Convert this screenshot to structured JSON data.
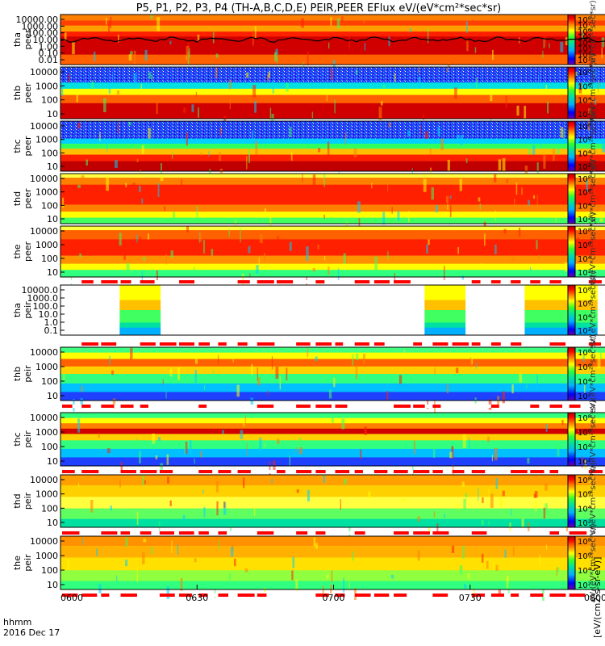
{
  "chart_data": {
    "type": "heatmap",
    "title": "P5, P1, P2, P3, P4 (TH-A,B,C,D,E) PEIR,PEER EFlux eV/(eV*cm²*sec*sr)",
    "x_ticks": [
      "0600",
      "0630",
      "0700",
      "0730",
      "0800"
    ],
    "x_range_minutes": [
      0,
      120
    ],
    "xlabel_line1": "hhmm",
    "xlabel_line2": "2016 Dec 17",
    "colorbar_label": "[eV/(cm2-s-sr-eV)]",
    "colorbar_ticks": [
      "10⁸",
      "10⁶",
      "10⁴",
      "10²"
    ],
    "colorbar_unit_overlay": "eV/(eV*cm²*sec*sr)",
    "panels": [
      {
        "label1": "tha",
        "label2": "peer",
        "y_scale": "log",
        "y_ticks": [
          "10000.00",
          "1000.00",
          "100.00",
          "10.00",
          "1.00",
          "0.10",
          "0.01"
        ],
        "colorbar_ticks": [
          "10⁸",
          "10⁷",
          "10⁶",
          "10⁵",
          "10⁴",
          "10³",
          "10²",
          "10¹"
        ]
      },
      {
        "label1": "thb",
        "label2": "peer",
        "y_scale": "log",
        "y_ticks": [
          "10000",
          "1000",
          "100",
          "10"
        ]
      },
      {
        "label1": "thc",
        "label2": "peer",
        "y_scale": "log",
        "y_ticks": [
          "10000",
          "1000",
          "100",
          "10"
        ]
      },
      {
        "label1": "thd",
        "label2": "peer",
        "y_scale": "log",
        "y_ticks": [
          "10000",
          "1000",
          "100",
          "10"
        ]
      },
      {
        "label1": "the",
        "label2": "peer",
        "y_scale": "log",
        "y_ticks": [
          "10000",
          "1000",
          "100",
          "10"
        ]
      },
      {
        "label1": "tha",
        "label2": "peir",
        "y_scale": "log",
        "y_ticks": [
          "10000.0",
          "1000.0",
          "100.0",
          "10.0",
          "1.0",
          "0.1"
        ],
        "data_intervals_minutes": [
          [
            13,
            22
          ],
          [
            80,
            89
          ],
          [
            102,
            118
          ]
        ]
      },
      {
        "label1": "thb",
        "label2": "peir",
        "y_scale": "log",
        "y_ticks": [
          "10000",
          "1000",
          "100",
          "10"
        ]
      },
      {
        "label1": "thc",
        "label2": "peir",
        "y_scale": "log",
        "y_ticks": [
          "10000",
          "1000",
          "100",
          "10"
        ]
      },
      {
        "label1": "thd",
        "label2": "peir",
        "y_scale": "log",
        "y_ticks": [
          "10000",
          "1000",
          "100",
          "10"
        ]
      },
      {
        "label1": "the",
        "label2": "peir",
        "y_scale": "log",
        "y_ticks": [
          "10000",
          "1000",
          "100",
          "10"
        ]
      }
    ]
  }
}
